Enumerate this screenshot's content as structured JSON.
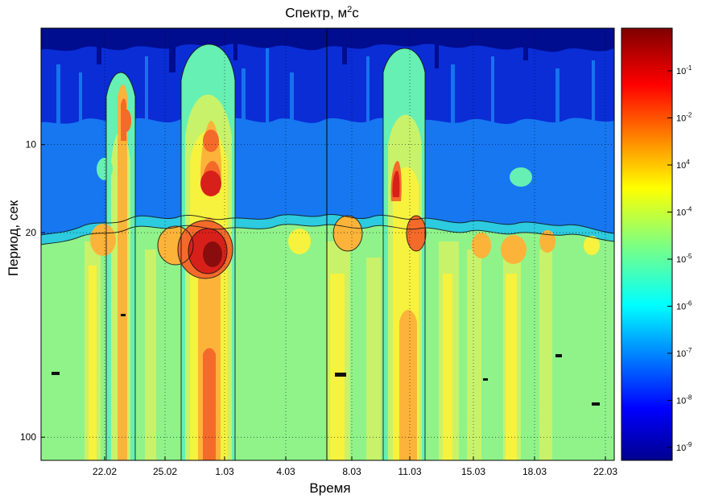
{
  "chart_data": {
    "type": "heatmap",
    "title_main": "Спектр, м",
    "title_sup": "2",
    "title_tail": "с",
    "xlabel": "Время",
    "ylabel": "Период, сек",
    "x_ticks": [
      "22.02",
      "25.02",
      "1.03",
      "4.03",
      "8.03",
      "11.03",
      "15.03",
      "18.03",
      "22.03"
    ],
    "y_scale": "log",
    "y_ticks": [
      10,
      20,
      100
    ],
    "ylim_seconds": [
      4,
      120
    ],
    "grid": "dotted",
    "colormap": "jet",
    "colorbar": {
      "scale": "log",
      "labels": [
        {
          "base": "10",
          "exp": "-1"
        },
        {
          "base": "10",
          "exp": "-2"
        },
        {
          "base": "10",
          "exp": "4"
        },
        {
          "base": "10",
          "exp": "-4"
        },
        {
          "base": "10",
          "exp": "-5"
        },
        {
          "base": "10",
          "exp": "-6"
        },
        {
          "base": "10",
          "exp": "-7"
        },
        {
          "base": "10",
          "exp": "-8"
        },
        {
          "base": "10",
          "exp": "-9"
        }
      ]
    },
    "colors": {
      "dark_blue": "#000d8f",
      "blue": "#0a2dd6",
      "mid_blue": "#1677f0",
      "cyan": "#2ccbe0",
      "aqua": "#66f0b4",
      "green": "#8ff38a",
      "yellow_green": "#c8f26a",
      "yellow": "#f6f23e",
      "orange": "#fcb33a",
      "red_orange": "#f46a2a",
      "red": "#d8201a",
      "dark_red": "#8a0d0d"
    }
  }
}
